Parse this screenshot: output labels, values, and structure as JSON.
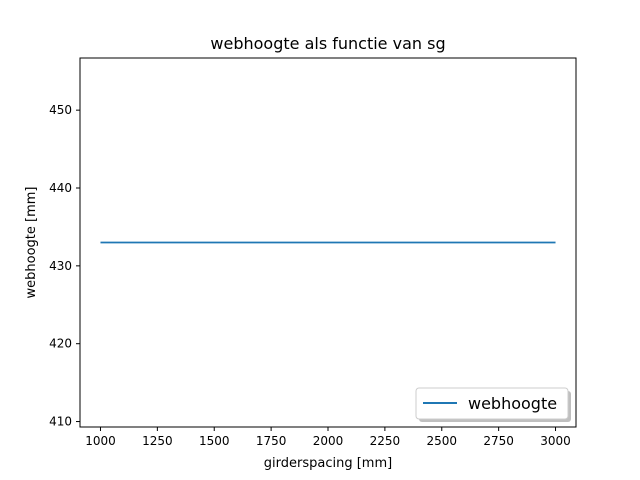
{
  "chart_data": {
    "type": "line",
    "title": "webhoogte als functie van sg",
    "xlabel": "girderspacing [mm]",
    "ylabel": "webhoogte [mm]",
    "xlim": [
      910,
      3090
    ],
    "ylim": [
      409.3,
      456.7
    ],
    "xticks": [
      1000,
      1250,
      1500,
      1750,
      2000,
      2250,
      2500,
      2750,
      3000
    ],
    "yticks": [
      410,
      420,
      430,
      440,
      450
    ],
    "grid": false,
    "legend_position": "lower-right",
    "series": [
      {
        "name": "webhoogte",
        "color": "#1f77b4",
        "x": [
          1000,
          3000
        ],
        "y": [
          433,
          433
        ]
      }
    ]
  }
}
